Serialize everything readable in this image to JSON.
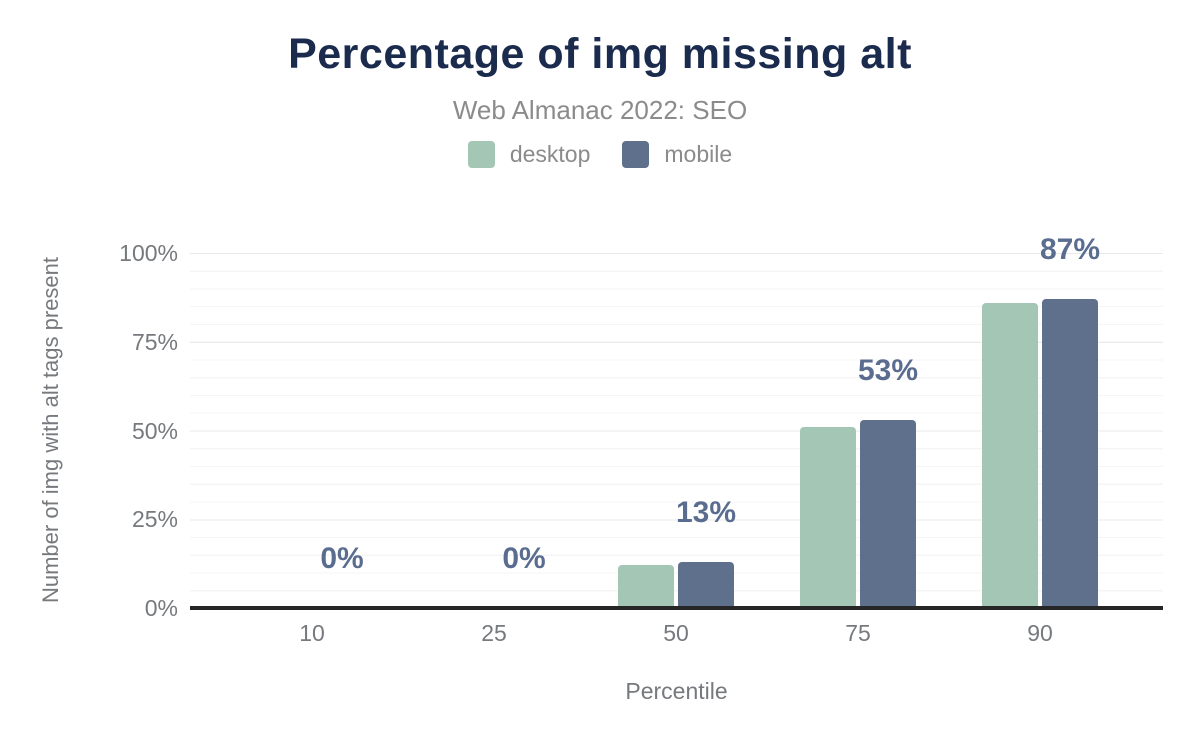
{
  "header": {
    "title": "Percentage of img missing alt",
    "subtitle": "Web Almanac 2022: SEO"
  },
  "legend": [
    {
      "label": "desktop",
      "color": "#a4c6b5"
    },
    {
      "label": "mobile",
      "color": "#5f708d"
    }
  ],
  "axes": {
    "y_title": "Number of img with alt tags present",
    "x_title": "Percentile",
    "y_ticks": [
      "0%",
      "25%",
      "50%",
      "75%",
      "100%"
    ],
    "x_ticks": [
      "10",
      "25",
      "50",
      "75",
      "90"
    ]
  },
  "chart_data": {
    "type": "bar",
    "title": "Percentage of img missing alt",
    "subtitle": "Web Almanac 2022: SEO",
    "categories": [
      "10",
      "25",
      "50",
      "75",
      "90"
    ],
    "series": [
      {
        "name": "desktop",
        "color": "#a4c6b5",
        "values": [
          0,
          0,
          12,
          51,
          86
        ]
      },
      {
        "name": "mobile",
        "color": "#5f708d",
        "values": [
          0,
          0,
          13,
          53,
          87
        ]
      }
    ],
    "bar_labels": [
      "0%",
      "0%",
      "13%",
      "53%",
      "87%"
    ],
    "xlabel": "Percentile",
    "ylabel": "Number of img with alt tags present",
    "ylim": [
      0,
      100
    ],
    "y_major_step": 25,
    "y_minor_step": 5,
    "grid": true,
    "legend_position": "top"
  },
  "colors": {
    "title": "#1b2b4d",
    "subtitle": "#8b8b8b",
    "tick": "#76797d",
    "axis_line": "#262626",
    "bar_label": "#5a6d90",
    "grid_major": "#e9e9e9",
    "grid_minor": "#f5f5f5"
  }
}
